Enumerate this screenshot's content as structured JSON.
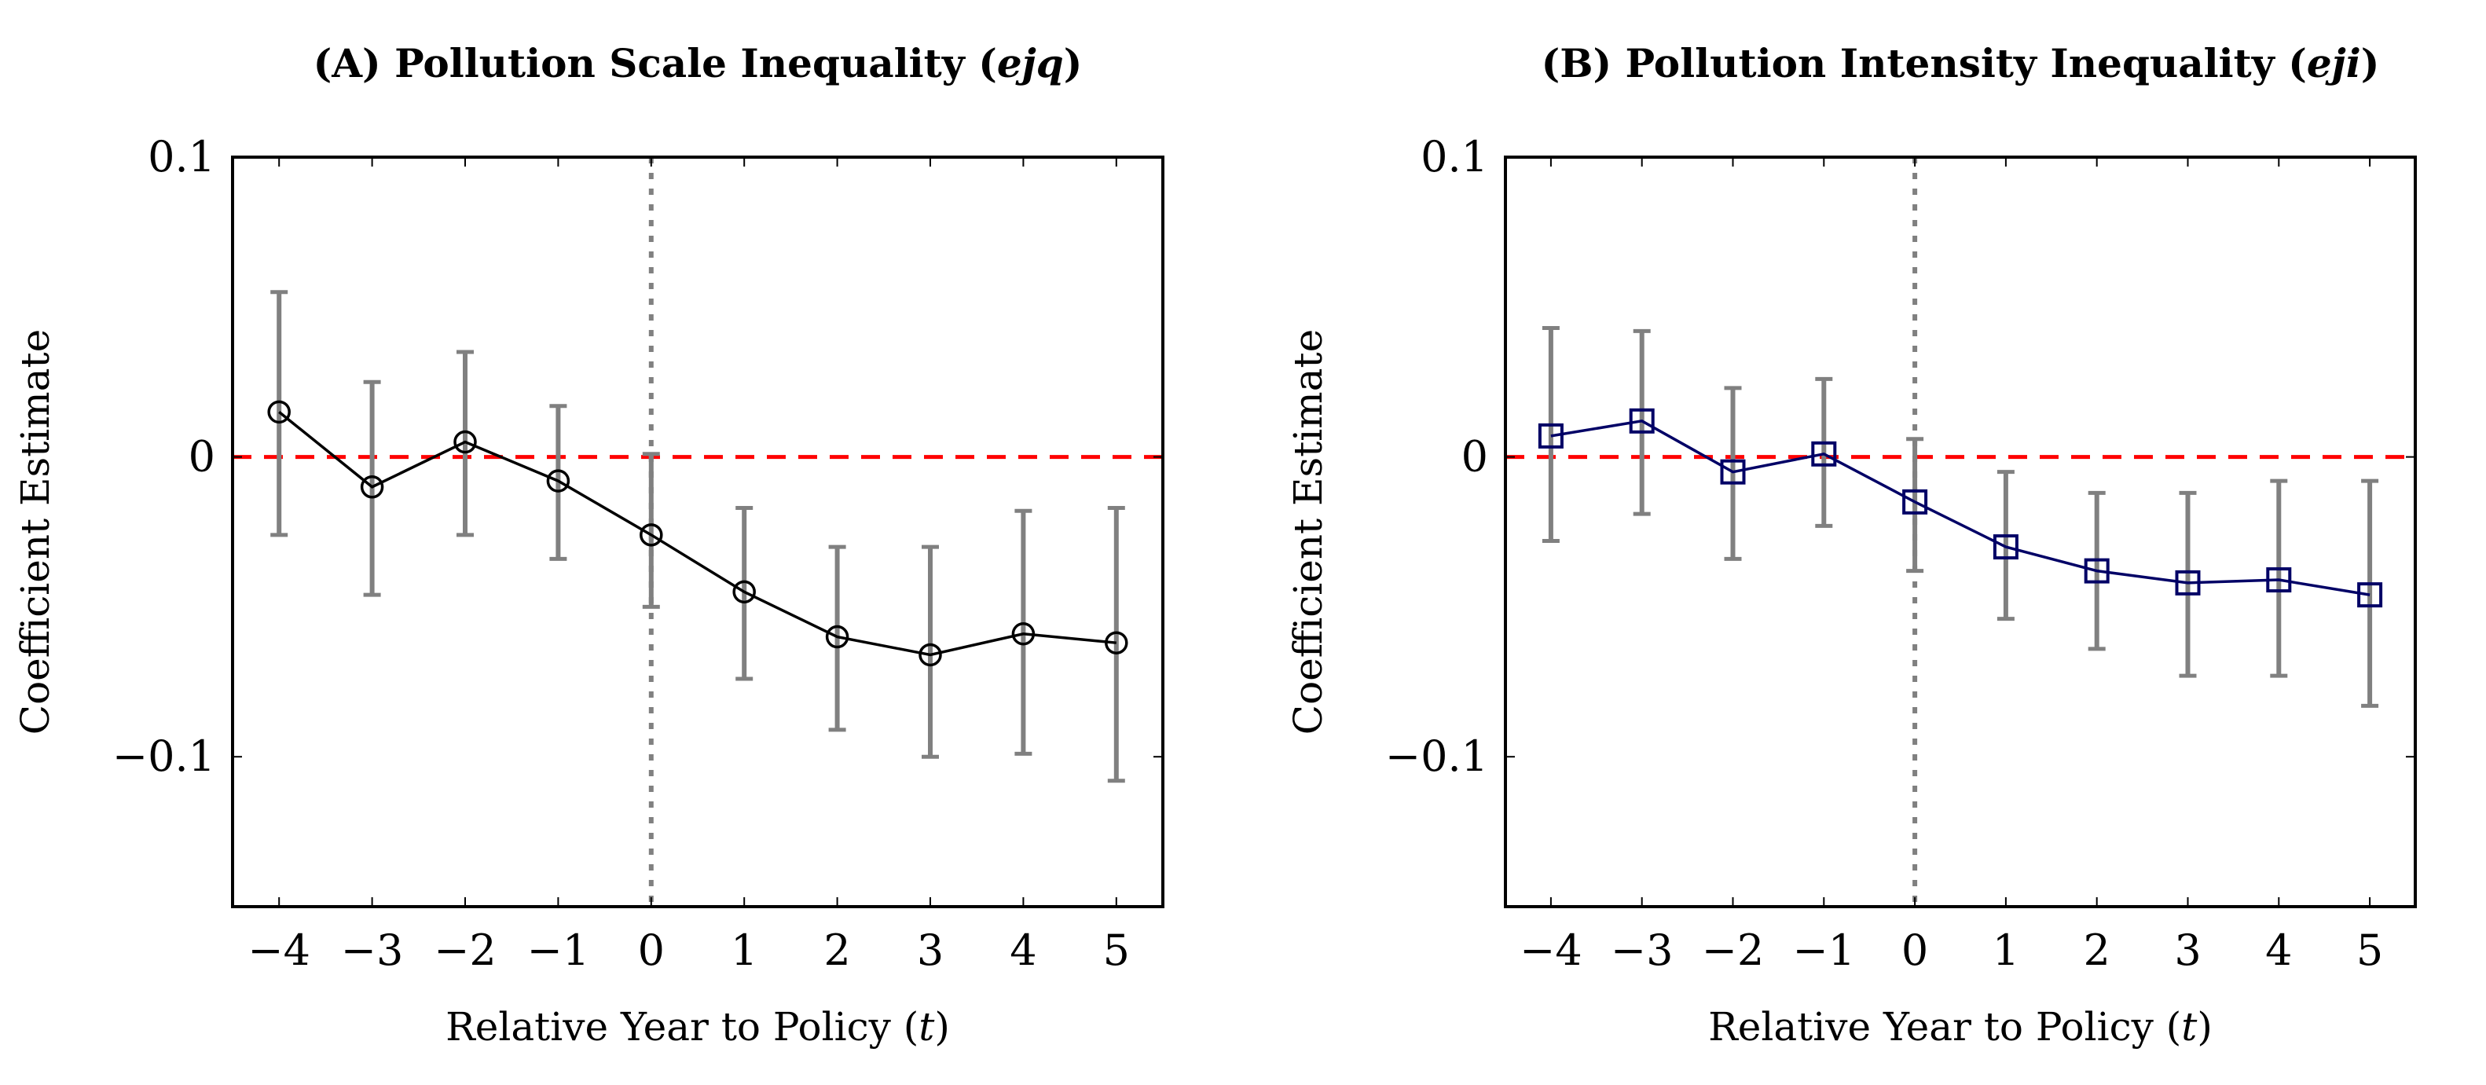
{
  "chart_data": [
    {
      "type": "line",
      "title": "(A) Pollution Scale Inequality (ejq)",
      "title_main": "(A) Pollution Scale Inequality (",
      "title_italic": "ejq",
      "title_close": ")",
      "xlabel": "Relative Year to Policy (t)",
      "xlabel_main": "Relative Year to Policy (",
      "xlabel_italic": "t",
      "xlabel_close": ")",
      "ylabel": "Coefficient Estimate",
      "xlim": [
        -4.5,
        5.5
      ],
      "ylim": [
        -0.15,
        0.1
      ],
      "xticks": [
        -4,
        -3,
        -2,
        -1,
        0,
        1,
        2,
        3,
        4,
        5
      ],
      "xtick_labels": [
        "−4",
        "−3",
        "−2",
        "−1",
        "0",
        "1",
        "2",
        "3",
        "4",
        "5"
      ],
      "yticks": [
        -0.1,
        0,
        0.1
      ],
      "ytick_labels": [
        "−0.1",
        "0",
        "0.1"
      ],
      "marker": "circle",
      "line_color": "#000000",
      "errorbar_color": "#808080",
      "reference_line": {
        "y": 0,
        "color": "#ff0000",
        "style": "dashed"
      },
      "policy_line": {
        "x": 0,
        "color": "#808080",
        "style": "dotted"
      },
      "x": [
        -4,
        -3,
        -2,
        -1,
        0,
        1,
        2,
        3,
        4,
        5
      ],
      "y": [
        0.015,
        -0.01,
        0.005,
        -0.008,
        -0.026,
        -0.045,
        -0.06,
        -0.066,
        -0.059,
        -0.062
      ],
      "ci_upper": [
        0.055,
        0.025,
        0.035,
        0.017,
        0.001,
        -0.017,
        -0.03,
        -0.03,
        -0.018,
        -0.017
      ],
      "ci_lower": [
        -0.026,
        -0.046,
        -0.026,
        -0.034,
        -0.05,
        -0.074,
        -0.091,
        -0.1,
        -0.099,
        -0.108
      ]
    },
    {
      "type": "line",
      "title": "(B) Pollution Intensity Inequality (eji)",
      "title_main": "(B) Pollution Intensity Inequality (",
      "title_italic": "eji",
      "title_close": ")",
      "xlabel": "Relative Year to Policy (t)",
      "xlabel_main": "Relative Year to Policy (",
      "xlabel_italic": "t",
      "xlabel_close": ")",
      "ylabel": "Coefficient Estimate",
      "xlim": [
        -4.5,
        5.5
      ],
      "ylim": [
        -0.15,
        0.1
      ],
      "xticks": [
        -4,
        -3,
        -2,
        -1,
        0,
        1,
        2,
        3,
        4,
        5
      ],
      "xtick_labels": [
        "−4",
        "−3",
        "−2",
        "−1",
        "0",
        "1",
        "2",
        "3",
        "4",
        "5"
      ],
      "yticks": [
        -0.1,
        0,
        0.1
      ],
      "ytick_labels": [
        "−0.1",
        "0",
        "0.1"
      ],
      "marker": "square",
      "line_color": "#000066",
      "errorbar_color": "#808080",
      "reference_line": {
        "y": 0,
        "color": "#ff0000",
        "style": "dashed"
      },
      "policy_line": {
        "x": 0,
        "color": "#808080",
        "style": "dotted"
      },
      "x": [
        -4,
        -3,
        -2,
        -1,
        0,
        1,
        2,
        3,
        4,
        5
      ],
      "y": [
        0.007,
        0.012,
        -0.005,
        0.001,
        -0.015,
        -0.03,
        -0.038,
        -0.042,
        -0.041,
        -0.046
      ],
      "ci_upper": [
        0.043,
        0.042,
        0.023,
        0.026,
        0.006,
        -0.005,
        -0.012,
        -0.012,
        -0.008,
        -0.008
      ],
      "ci_lower": [
        -0.028,
        -0.019,
        -0.034,
        -0.023,
        -0.038,
        -0.054,
        -0.064,
        -0.073,
        -0.073,
        -0.083
      ]
    }
  ]
}
